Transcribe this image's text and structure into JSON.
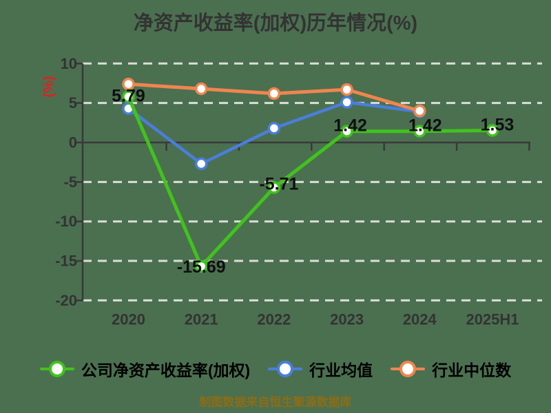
{
  "title": "净资产收益率(加权)历年情况(%)",
  "footer": "制图数据来自恒生聚源数据库",
  "colors": {
    "background": "#4B7050",
    "title": "#333333",
    "axis": "#3A3A3A",
    "grid": "#DBDED8",
    "tick_label": "#333333",
    "data_label": "#0F0F0F",
    "ylabel": "#E02020",
    "footer": "#8C6D15",
    "marker_fill": "#FFFFFF"
  },
  "chart_data": {
    "type": "line",
    "title": "净资产收益率(加权)历年情况(%)",
    "ylabel": "(%)",
    "xlabel": "",
    "categories": [
      "2020",
      "2021",
      "2022",
      "2023",
      "2024",
      "2025H1"
    ],
    "ylim": [
      -20,
      10
    ],
    "yticks": [
      10,
      5,
      0,
      -5,
      -10,
      -15,
      -20
    ],
    "grid": "horizontal-dashed",
    "legend_position": "bottom",
    "marker": "circle-white-fill",
    "series": [
      {
        "name": "公司净资产收益率(加权)",
        "color": "#41C21D",
        "values": [
          5.79,
          -15.69,
          -5.71,
          1.42,
          1.42,
          1.53
        ],
        "labels": [
          "5.79",
          "-15.69",
          "-5.71",
          "1.42",
          "1.42",
          "1.53"
        ],
        "show_labels": true
      },
      {
        "name": "行业均值",
        "color": "#4A7EDC",
        "values": [
          4.3,
          -2.7,
          1.8,
          5.1,
          3.9,
          null
        ],
        "labels": [],
        "show_labels": false
      },
      {
        "name": "行业中位数",
        "color": "#F0854F",
        "values": [
          7.4,
          6.8,
          6.2,
          6.7,
          4.0,
          null
        ],
        "labels": [],
        "show_labels": false
      }
    ]
  }
}
